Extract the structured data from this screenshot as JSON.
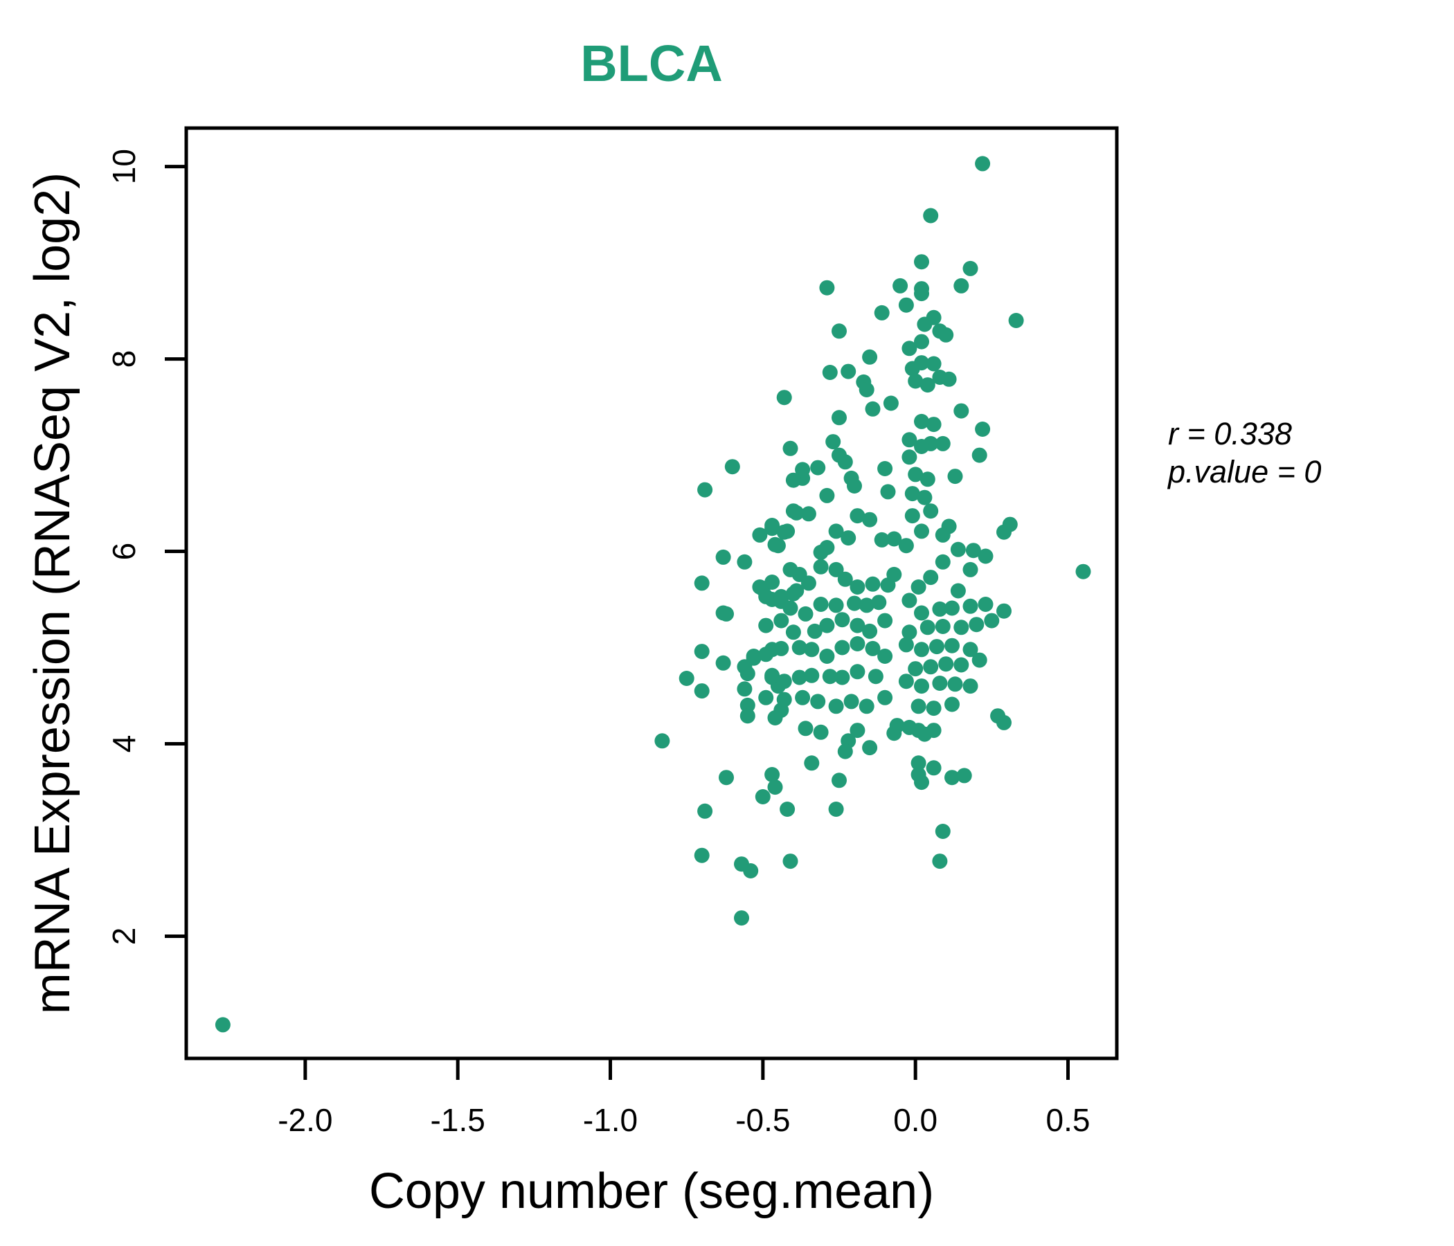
{
  "figure": {
    "title": "BLCA",
    "title_color": "#1f9c77"
  },
  "chart_data": {
    "type": "scatter",
    "title": "BLCA",
    "xlabel": "Copy number (seg.mean)",
    "ylabel": "mRNA Expression (RNASeq V2, log2)",
    "x_ticks": [
      -2.0,
      -1.5,
      -1.0,
      -0.5,
      0.0,
      0.5
    ],
    "x_tick_labels": [
      "-2.0",
      "-1.5",
      "-1.0",
      "-0.5",
      "0.0",
      "0.5"
    ],
    "y_ticks": [
      2,
      4,
      6,
      8,
      10
    ],
    "y_tick_labels": [
      "2",
      "4",
      "6",
      "8",
      "10"
    ],
    "xlim": [
      -2.39,
      0.66
    ],
    "ylim": [
      0.73,
      10.4
    ],
    "grid": false,
    "legend": null,
    "point_color": "#229b77",
    "point_radius_px": 11,
    "annotation": {
      "r_label": "r = 0.338",
      "p_label": "p.value = 0",
      "r_value": 0.338,
      "p_value": 0
    },
    "points": [
      [
        0.22,
        10.03
      ],
      [
        0.05,
        9.49
      ],
      [
        0.02,
        9.01
      ],
      [
        -0.05,
        8.76
      ],
      [
        0.02,
        8.73
      ],
      [
        -0.29,
        8.74
      ],
      [
        0.18,
        8.94
      ],
      [
        0.15,
        8.76
      ],
      [
        -0.03,
        8.56
      ],
      [
        0.02,
        8.68
      ],
      [
        -0.11,
        8.48
      ],
      [
        -0.25,
        8.29
      ],
      [
        0.06,
        8.43
      ],
      [
        0.08,
        8.29
      ],
      [
        0.03,
        8.36
      ],
      [
        -0.02,
        8.11
      ],
      [
        0.02,
        8.18
      ],
      [
        0.1,
        8.25
      ],
      [
        0.33,
        8.4
      ],
      [
        -0.15,
        8.02
      ],
      [
        -0.22,
        7.87
      ],
      [
        -0.17,
        7.76
      ],
      [
        -0.01,
        7.9
      ],
      [
        0.02,
        7.96
      ],
      [
        0.06,
        7.95
      ],
      [
        0.0,
        7.77
      ],
      [
        0.04,
        7.73
      ],
      [
        0.08,
        7.81
      ],
      [
        0.11,
        7.79
      ],
      [
        -0.28,
        7.86
      ],
      [
        -0.43,
        7.6
      ],
      [
        0.15,
        7.46
      ],
      [
        0.02,
        7.35
      ],
      [
        0.06,
        7.32
      ],
      [
        0.22,
        7.27
      ],
      [
        -0.41,
        7.07
      ],
      [
        -0.25,
        7.39
      ],
      [
        -0.14,
        7.48
      ],
      [
        -0.08,
        7.54
      ],
      [
        -0.16,
        7.68
      ],
      [
        -0.27,
        7.14
      ],
      [
        -0.25,
        7.0
      ],
      [
        -0.23,
        6.93
      ],
      [
        0.21,
        7.0
      ],
      [
        0.09,
        7.12
      ],
      [
        0.05,
        7.12
      ],
      [
        0.02,
        7.09
      ],
      [
        -0.02,
        7.16
      ],
      [
        -0.6,
        6.88
      ],
      [
        -0.69,
        6.64
      ],
      [
        -0.37,
        6.76
      ],
      [
        -0.37,
        6.85
      ],
      [
        -0.32,
        6.87
      ],
      [
        -0.21,
        6.76
      ],
      [
        -0.2,
        6.68
      ],
      [
        -0.1,
        6.86
      ],
      [
        -0.09,
        6.62
      ],
      [
        -0.29,
        6.58
      ],
      [
        0.13,
        6.78
      ],
      [
        -0.02,
        6.98
      ],
      [
        0.0,
        6.8
      ],
      [
        0.04,
        6.75
      ],
      [
        -0.01,
        6.6
      ],
      [
        0.03,
        6.56
      ],
      [
        -0.4,
        6.74
      ],
      [
        -0.4,
        6.42
      ],
      [
        -0.39,
        6.4
      ],
      [
        -0.35,
        6.39
      ],
      [
        -0.19,
        6.37
      ],
      [
        -0.15,
        6.33
      ],
      [
        0.05,
        6.42
      ],
      [
        -0.01,
        6.37
      ],
      [
        0.29,
        6.2
      ],
      [
        0.31,
        6.28
      ],
      [
        -0.47,
        6.27
      ],
      [
        -0.51,
        6.17
      ],
      [
        -0.42,
        6.21
      ],
      [
        -0.45,
        6.06
      ],
      [
        -0.63,
        5.94
      ],
      [
        -0.56,
        5.89
      ],
      [
        -0.47,
        6.24
      ],
      [
        -0.43,
        6.2
      ],
      [
        -0.46,
        6.07
      ],
      [
        -0.29,
        6.04
      ],
      [
        -0.26,
        6.21
      ],
      [
        -0.22,
        6.14
      ],
      [
        -0.11,
        6.12
      ],
      [
        -0.07,
        6.13
      ],
      [
        0.11,
        6.26
      ],
      [
        0.09,
        6.17
      ],
      [
        0.14,
        6.02
      ],
      [
        0.09,
        5.89
      ],
      [
        0.02,
        6.21
      ],
      [
        -0.03,
        6.06
      ],
      [
        0.19,
        6.01
      ],
      [
        0.23,
        5.95
      ],
      [
        -0.31,
        5.99
      ],
      [
        -0.7,
        5.67
      ],
      [
        -0.5,
        5.61
      ],
      [
        -0.47,
        5.5
      ],
      [
        -0.44,
        5.48
      ],
      [
        -0.39,
        5.59
      ],
      [
        -0.31,
        5.84
      ],
      [
        -0.26,
        5.81
      ],
      [
        -0.38,
        5.76
      ],
      [
        -0.41,
        5.81
      ],
      [
        -0.47,
        5.68
      ],
      [
        -0.51,
        5.63
      ],
      [
        -0.49,
        5.53
      ],
      [
        -0.44,
        5.53
      ],
      [
        -0.4,
        5.56
      ],
      [
        -0.35,
        5.67
      ],
      [
        -0.23,
        5.71
      ],
      [
        -0.19,
        5.63
      ],
      [
        -0.14,
        5.66
      ],
      [
        -0.09,
        5.65
      ],
      [
        -0.07,
        5.76
      ],
      [
        0.55,
        5.79
      ],
      [
        0.18,
        5.81
      ],
      [
        0.05,
        5.73
      ],
      [
        0.01,
        5.63
      ],
      [
        0.14,
        5.59
      ],
      [
        -0.63,
        5.36
      ],
      [
        -0.41,
        5.41
      ],
      [
        -0.36,
        5.35
      ],
      [
        -0.31,
        5.45
      ],
      [
        -0.26,
        5.44
      ],
      [
        -0.2,
        5.46
      ],
      [
        -0.16,
        5.44
      ],
      [
        -0.12,
        5.47
      ],
      [
        -0.49,
        5.23
      ],
      [
        -0.44,
        5.28
      ],
      [
        -0.4,
        5.16
      ],
      [
        -0.33,
        5.17
      ],
      [
        -0.29,
        5.23
      ],
      [
        -0.24,
        5.29
      ],
      [
        -0.19,
        5.23
      ],
      [
        -0.15,
        5.17
      ],
      [
        -0.1,
        5.28
      ],
      [
        -0.02,
        5.49
      ],
      [
        0.02,
        5.36
      ],
      [
        0.08,
        5.4
      ],
      [
        0.12,
        5.41
      ],
      [
        0.18,
        5.43
      ],
      [
        0.23,
        5.45
      ],
      [
        0.29,
        5.38
      ],
      [
        0.25,
        5.28
      ],
      [
        0.2,
        5.24
      ],
      [
        0.15,
        5.21
      ],
      [
        0.09,
        5.22
      ],
      [
        0.04,
        5.21
      ],
      [
        -0.02,
        5.16
      ],
      [
        -0.62,
        5.35
      ],
      [
        -0.47,
        4.98
      ],
      [
        -0.53,
        4.91
      ],
      [
        -0.7,
        4.96
      ],
      [
        -0.63,
        4.84
      ],
      [
        -0.53,
        4.89
      ],
      [
        -0.49,
        4.93
      ],
      [
        -0.44,
        4.99
      ],
      [
        -0.38,
        5.0
      ],
      [
        -0.34,
        4.98
      ],
      [
        -0.29,
        4.91
      ],
      [
        -0.24,
        5.0
      ],
      [
        -0.19,
        5.04
      ],
      [
        -0.14,
        4.99
      ],
      [
        -0.1,
        4.91
      ],
      [
        -0.03,
        5.03
      ],
      [
        0.02,
        4.98
      ],
      [
        0.07,
        5.01
      ],
      [
        0.12,
        5.02
      ],
      [
        0.18,
        4.98
      ],
      [
        0.21,
        4.87
      ],
      [
        0.15,
        4.82
      ],
      [
        0.1,
        4.83
      ],
      [
        0.05,
        4.8
      ],
      [
        0.0,
        4.78
      ],
      [
        -0.55,
        4.73
      ],
      [
        -0.47,
        4.69
      ],
      [
        -0.75,
        4.68
      ],
      [
        -0.7,
        4.55
      ],
      [
        -0.56,
        4.57
      ],
      [
        -0.55,
        4.4
      ],
      [
        -0.45,
        4.6
      ],
      [
        -0.44,
        4.35
      ],
      [
        -0.56,
        4.8
      ],
      [
        -0.47,
        4.71
      ],
      [
        -0.43,
        4.65
      ],
      [
        -0.38,
        4.69
      ],
      [
        -0.34,
        4.71
      ],
      [
        -0.28,
        4.7
      ],
      [
        -0.24,
        4.69
      ],
      [
        -0.19,
        4.75
      ],
      [
        -0.13,
        4.7
      ],
      [
        -0.03,
        4.65
      ],
      [
        0.02,
        4.6
      ],
      [
        0.08,
        4.63
      ],
      [
        0.13,
        4.62
      ],
      [
        0.18,
        4.6
      ],
      [
        -0.49,
        4.48
      ],
      [
        -0.43,
        4.46
      ],
      [
        -0.37,
        4.48
      ],
      [
        -0.32,
        4.44
      ],
      [
        -0.26,
        4.39
      ],
      [
        -0.21,
        4.44
      ],
      [
        -0.16,
        4.39
      ],
      [
        -0.1,
        4.48
      ],
      [
        0.06,
        4.37
      ],
      [
        0.01,
        4.39
      ],
      [
        0.12,
        4.41
      ],
      [
        0.27,
        4.29
      ],
      [
        -0.55,
        4.29
      ],
      [
        -0.46,
        4.27
      ],
      [
        -0.83,
        4.03
      ],
      [
        -0.36,
        4.16
      ],
      [
        -0.31,
        4.12
      ],
      [
        -0.19,
        4.14
      ],
      [
        -0.22,
        4.03
      ],
      [
        -0.23,
        3.92
      ],
      [
        -0.15,
        3.96
      ],
      [
        -0.07,
        4.11
      ],
      [
        -0.06,
        4.19
      ],
      [
        -0.02,
        4.17
      ],
      [
        0.01,
        4.14
      ],
      [
        0.03,
        4.1
      ],
      [
        0.06,
        4.14
      ],
      [
        0.29,
        4.22
      ],
      [
        -0.34,
        3.8
      ],
      [
        -0.25,
        3.62
      ],
      [
        0.01,
        3.8
      ],
      [
        0.01,
        3.68
      ],
      [
        0.02,
        3.6
      ],
      [
        0.06,
        3.75
      ],
      [
        0.12,
        3.65
      ],
      [
        0.16,
        3.67
      ],
      [
        -0.62,
        3.65
      ],
      [
        -0.47,
        3.68
      ],
      [
        -0.46,
        3.55
      ],
      [
        -0.5,
        3.45
      ],
      [
        -0.42,
        3.32
      ],
      [
        -0.69,
        3.3
      ],
      [
        -0.26,
        3.32
      ],
      [
        0.09,
        3.09
      ],
      [
        0.08,
        2.78
      ],
      [
        -0.7,
        2.84
      ],
      [
        -0.57,
        2.75
      ],
      [
        -0.54,
        2.68
      ],
      [
        -0.41,
        2.78
      ],
      [
        -0.57,
        2.19
      ],
      [
        -2.27,
        1.08
      ]
    ]
  }
}
